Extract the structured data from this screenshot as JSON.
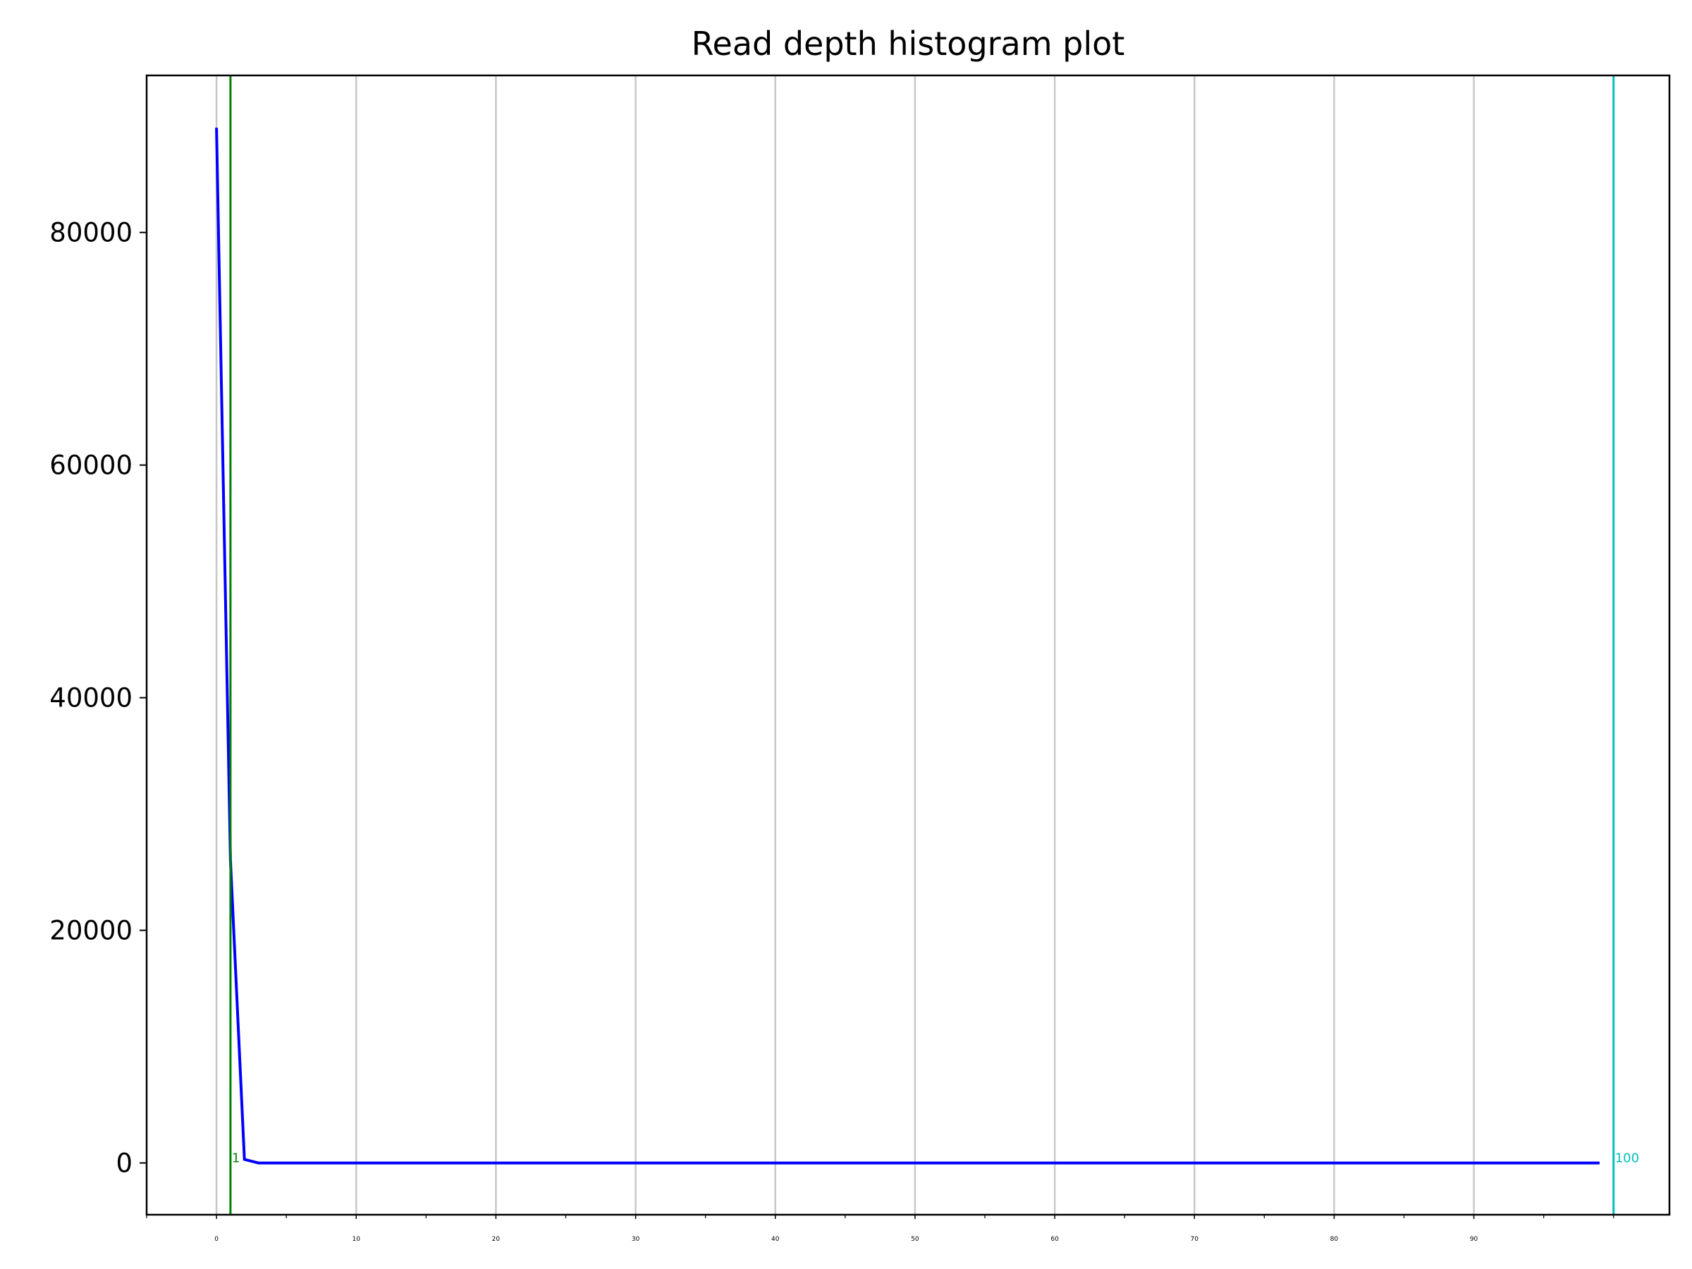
{
  "chart_data": {
    "type": "line",
    "title": "Read depth histogram plot",
    "xlabel": "",
    "ylabel": "",
    "xlim": [
      -5,
      104
    ],
    "ylim": [
      -4450,
      93500
    ],
    "x_ticks": [
      0,
      10,
      20,
      30,
      40,
      50,
      60,
      70,
      80,
      90
    ],
    "y_ticks": [
      0,
      20000,
      40000,
      60000,
      80000
    ],
    "grid": "vertical",
    "series": [
      {
        "color": "#0000ff",
        "x": [
          0,
          1,
          2,
          3,
          4,
          5,
          10,
          20,
          30,
          40,
          50,
          60,
          70,
          80,
          90,
          99
        ],
        "y": [
          89000,
          26000,
          300,
          0,
          0,
          0,
          0,
          0,
          0,
          0,
          0,
          0,
          0,
          0,
          0,
          0
        ]
      }
    ],
    "vertical_lines": [
      {
        "x": 1,
        "label": "1",
        "color": "#008000"
      },
      {
        "x": 100,
        "label": "100",
        "color": "#00bfbf"
      }
    ]
  }
}
